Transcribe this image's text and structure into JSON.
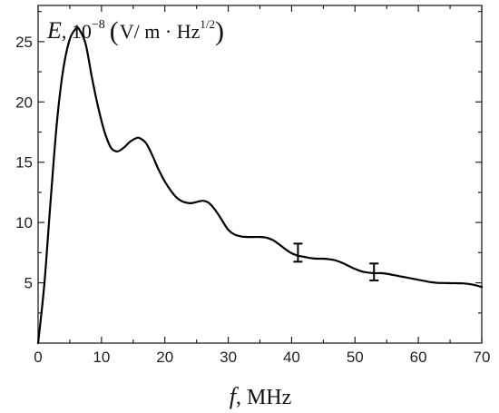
{
  "chart_data": {
    "type": "line",
    "title": "",
    "ylabel": {
      "symbol": "E",
      "scale_text": ", 10",
      "scale_exponent": "−8",
      "open_paren": "(",
      "unit_main": "V/ m · Hz",
      "unit_exponent": "1/2",
      "close_paren": ")"
    },
    "xlabel": {
      "symbol": "f",
      "unit": ", MHz"
    },
    "xlim": [
      0,
      70
    ],
    "ylim": [
      0,
      28
    ],
    "x_ticks": [
      {
        "value": 0,
        "label": "0"
      },
      {
        "value": 10,
        "label": "10"
      },
      {
        "value": 20,
        "label": "20"
      },
      {
        "value": 30,
        "label": "30"
      },
      {
        "value": 40,
        "label": "40"
      },
      {
        "value": 50,
        "label": "50"
      },
      {
        "value": 60,
        "label": "60"
      },
      {
        "value": 70,
        "label": "70"
      }
    ],
    "y_ticks": [
      {
        "value": 5,
        "label": "5"
      },
      {
        "value": 10,
        "label": "10"
      },
      {
        "value": 15,
        "label": "15"
      },
      {
        "value": 20,
        "label": "20"
      },
      {
        "value": 25,
        "label": "25"
      }
    ],
    "x_minor_step": 5,
    "y_minor_step": 2.5,
    "grid": false,
    "series": [
      {
        "x": [
          0,
          1,
          2,
          3,
          4,
          5,
          6,
          6.5,
          7.5,
          8.5,
          9.5,
          10.5,
          11.5,
          12.5,
          13.5,
          14.5,
          15.5,
          16,
          17,
          18,
          19,
          20,
          21,
          22,
          23,
          24,
          25,
          26,
          27,
          28,
          29,
          30,
          31,
          32,
          33,
          34,
          35,
          36,
          37,
          38,
          39,
          40,
          41,
          42,
          43,
          44,
          45,
          46,
          47,
          48,
          49,
          50,
          51,
          52,
          53,
          54,
          55,
          56,
          57,
          58,
          59,
          60,
          61,
          62,
          63,
          64,
          65,
          66,
          67,
          68,
          69,
          70
        ],
        "y": [
          0,
          5,
          12,
          18.5,
          22.8,
          25.2,
          26.1,
          26.0,
          24.8,
          22.0,
          19.5,
          17.5,
          16.2,
          15.9,
          16.2,
          16.7,
          17.0,
          17.0,
          16.6,
          15.6,
          14.4,
          13.4,
          12.6,
          12.0,
          11.7,
          11.6,
          11.7,
          11.8,
          11.6,
          11.0,
          10.2,
          9.4,
          9.0,
          8.85,
          8.8,
          8.8,
          8.8,
          8.75,
          8.55,
          8.2,
          7.8,
          7.45,
          7.25,
          7.15,
          7.05,
          7.0,
          7.0,
          6.95,
          6.85,
          6.65,
          6.4,
          6.15,
          5.95,
          5.85,
          5.8,
          5.8,
          5.75,
          5.65,
          5.55,
          5.45,
          5.35,
          5.25,
          5.15,
          5.05,
          5.0,
          4.98,
          4.97,
          4.97,
          4.95,
          4.9,
          4.8,
          4.65
        ]
      }
    ],
    "error_bars": [
      {
        "x": 41,
        "y": 7.5,
        "low": 6.75,
        "high": 8.25
      },
      {
        "x": 53,
        "y": 5.85,
        "low": 5.2,
        "high": 6.6
      }
    ]
  }
}
